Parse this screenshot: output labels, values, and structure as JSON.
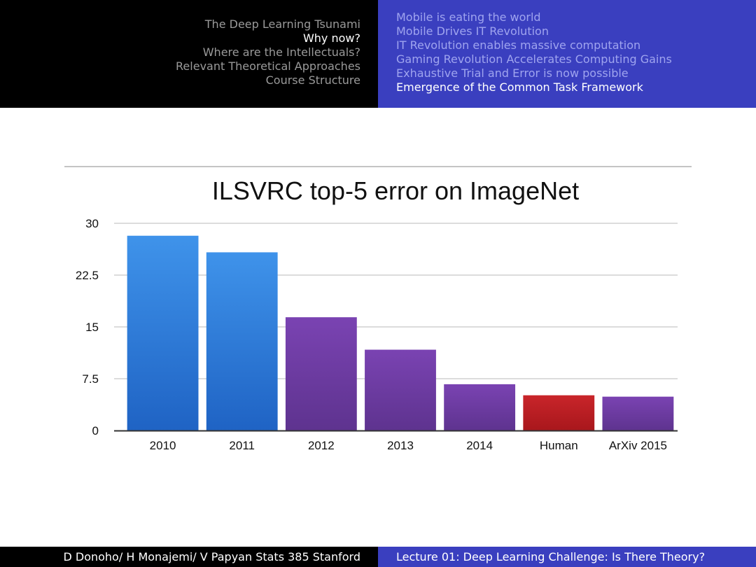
{
  "header": {
    "sections": [
      {
        "label": "The Deep Learning Tsunami",
        "current": false
      },
      {
        "label": "Why now?",
        "current": true
      },
      {
        "label": "Where are the Intellectuals?",
        "current": false
      },
      {
        "label": "Relevant Theoretical Approaches",
        "current": false
      },
      {
        "label": "Course Structure",
        "current": false
      }
    ],
    "subsections": [
      {
        "label": "Mobile is eating the world",
        "current": false
      },
      {
        "label": "Mobile Drives IT Revolution",
        "current": false
      },
      {
        "label": "IT Revolution enables massive computation",
        "current": false
      },
      {
        "label": "Gaming Revolution Accelerates Computing Gains",
        "current": false
      },
      {
        "label": "Exhaustive Trial and Error is now possible",
        "current": false
      },
      {
        "label": "Emergence of the Common Task Framework",
        "current": true
      }
    ]
  },
  "footer": {
    "left": "D Donoho/ H Monajemi/ V Papyan Stats 385 Stanford",
    "right": "Lecture 01: Deep Learning Challenge:  Is There Theory?"
  },
  "colors": {
    "blue": "#2e7fdc",
    "purple": "#6a3a9e",
    "red": "#bb1e22",
    "header_blue": "#3a3fbf"
  },
  "chart_data": {
    "type": "bar",
    "title": "ILSVRC top-5 error on ImageNet",
    "xlabel": "",
    "ylabel": "",
    "categories": [
      "2010",
      "2011",
      "2012",
      "2013",
      "2014",
      "Human",
      "ArXiv 2015"
    ],
    "values": [
      28.2,
      25.8,
      16.4,
      11.7,
      6.7,
      5.1,
      4.9
    ],
    "bar_colors": [
      "blue",
      "blue",
      "purple",
      "purple",
      "purple",
      "red",
      "purple"
    ],
    "ylim": [
      0,
      30
    ],
    "yticks": [
      0,
      7.5,
      15,
      22.5,
      30
    ],
    "ytick_labels": [
      "0",
      "7.5",
      "15",
      "22.5",
      "30"
    ],
    "grid": true,
    "legend": "none"
  }
}
